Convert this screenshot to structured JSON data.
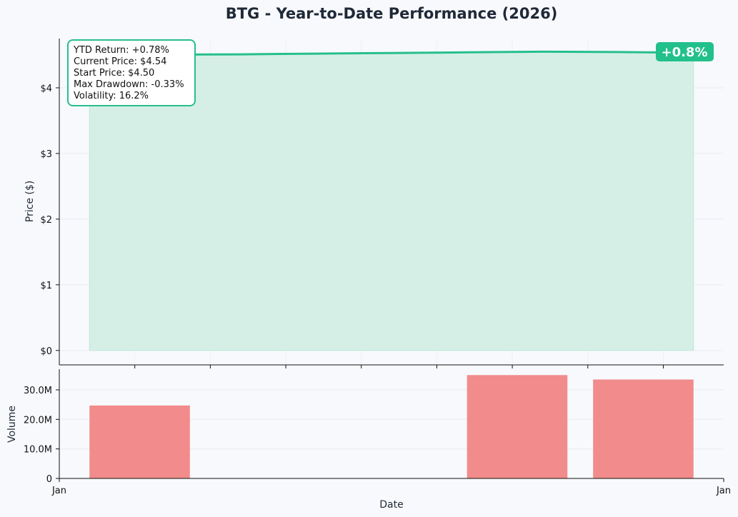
{
  "chart_data": {
    "type": "line",
    "title": "BTG - Year-to-Date Performance (2026)",
    "colors": {
      "line": "#26bf8c",
      "fill": "#d6efe6",
      "volume": "#f28b8b",
      "badge": "#22c08a"
    },
    "price_panel": {
      "ylabel": "Price ($)",
      "ylim": [
        -0.22,
        4.75
      ],
      "yticks": [
        0,
        1,
        2,
        3,
        4
      ],
      "ytick_labels": [
        "$0",
        "$1",
        "$2",
        "$3",
        "$4"
      ],
      "grid": true,
      "series": [
        {
          "x": [
            0.0,
            1.0,
            2.0,
            3.0,
            4.0,
            5.0,
            6.0,
            7.0,
            8.0
          ],
          "values": [
            4.5,
            4.505,
            4.51,
            4.52,
            4.53,
            4.54,
            4.55,
            4.545,
            4.535
          ]
        }
      ],
      "fill_to_zero": true
    },
    "stats_box": [
      "YTD Return: +0.78%",
      "Current Price: $4.54",
      "Start Price: $4.50",
      "Max Drawdown: -0.33%",
      "Volatility: 16.2%"
    ],
    "badge": "+0.8%",
    "volume_panel": {
      "ylabel": "Volume",
      "ylim": [
        0,
        37000000
      ],
      "yticks": [
        0,
        10000000,
        20000000,
        30000000
      ],
      "ytick_labels": [
        "0",
        "10.0M",
        "20.0M",
        "30.0M"
      ],
      "grid": true,
      "bars": [
        {
          "x_start": 0.0,
          "x_end": 1.33,
          "value": 24700000
        },
        {
          "x_start": 5.0,
          "x_end": 6.33,
          "value": 35000000
        },
        {
          "x_start": 6.67,
          "x_end": 8.0,
          "value": 33500000
        }
      ]
    },
    "x_axis": {
      "xlim": [
        -0.4,
        8.4
      ],
      "xlabel": "Date",
      "tick_labels": [
        "Jan",
        "Jan"
      ],
      "minor_ticks": [
        0.6,
        1.6,
        2.6,
        3.6,
        4.6,
        5.6,
        6.6,
        7.6
      ]
    }
  }
}
